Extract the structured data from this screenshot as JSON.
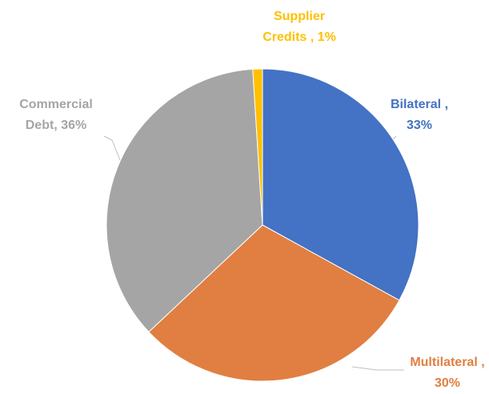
{
  "chart_data": {
    "type": "pie",
    "categories": [
      "Bilateral ,",
      "Multilateral ,",
      "Commercial Debt,",
      "Supplier Credits ,"
    ],
    "values": [
      33,
      30,
      36,
      1
    ],
    "value_labels": [
      "33%",
      "30%",
      "36%",
      "1%"
    ],
    "colors": [
      "#4472c4",
      "#e07f41",
      "#a5a5a5",
      "#ffc000"
    ],
    "label_colors": [
      "#4472c4",
      "#e07f41",
      "#a5a5a5",
      "#ffc000"
    ]
  }
}
